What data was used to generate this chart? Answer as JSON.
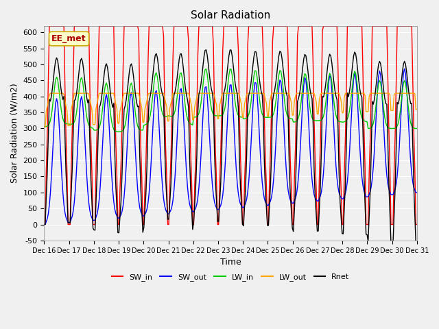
{
  "title": "Solar Radiation",
  "ylabel": "Solar Radiation (W/m2)",
  "xlabel": "Time",
  "ylim": [
    -50,
    620
  ],
  "xlim": [
    0,
    15
  ],
  "label_text": "EE_met",
  "label_bg": "#FFFFCC",
  "label_border": "#CCAA00",
  "label_text_color": "#AA0000",
  "bg_color": "#E8E8E8",
  "plot_bg": "#F0F0F0",
  "grid_color": "#FFFFFF",
  "colors": {
    "SW_in": "#FF0000",
    "SW_out": "#0000FF",
    "LW_in": "#00CC00",
    "LW_out": "#FFA500",
    "Rnet": "#000000"
  },
  "xtick_labels": [
    "Dec 16",
    "Dec 17",
    "Dec 18",
    "Dec 19",
    "Dec 20",
    "Dec 21",
    "Dec 22",
    "Dec 23",
    "Dec 24",
    "Dec 25",
    "Dec 26",
    "Dec 27",
    "Dec 28",
    "Dec 29",
    "Dec 30",
    "Dec 31"
  ],
  "xtick_positions": [
    0,
    1,
    2,
    3,
    4,
    5,
    6,
    7,
    8,
    9,
    10,
    11,
    12,
    13,
    14,
    15
  ],
  "ytick_labels": [
    "-50",
    "0",
    "50",
    "100",
    "150",
    "200",
    "250",
    "300",
    "350",
    "400",
    "450",
    "500",
    "550",
    "600"
  ],
  "ytick_positions": [
    -50,
    0,
    50,
    100,
    150,
    200,
    250,
    300,
    350,
    400,
    450,
    500,
    550,
    600
  ]
}
